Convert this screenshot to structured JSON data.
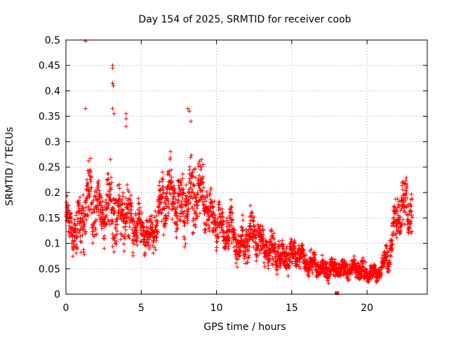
{
  "chart_data": {
    "type": "scatter",
    "title": "Day 154 of 2025, SRMTID for receiver coob",
    "xlabel": "GPS time / hours",
    "ylabel": "SRMTID / TECUs",
    "xlim": [
      0,
      24
    ],
    "ylim": [
      0,
      0.5
    ],
    "x_ticks": [
      0,
      5,
      10,
      15,
      20
    ],
    "x_tick_labels": [
      "0",
      "5",
      "10",
      "15",
      "20"
    ],
    "y_ticks": [
      0,
      0.05,
      0.1,
      0.15,
      0.2,
      0.25,
      0.3,
      0.35,
      0.4,
      0.45,
      0.5
    ],
    "y_tick_labels": [
      "0",
      "0.05",
      "0.1",
      "0.15",
      "0.2",
      "0.25",
      "0.3",
      "0.35",
      "0.4",
      "0.45",
      "0.5"
    ],
    "grid": true,
    "marker": "+",
    "color": "#ff0000",
    "series_envelope": {
      "x": [
        0,
        0.5,
        1,
        1.5,
        2,
        2.5,
        3,
        3.5,
        4,
        4.5,
        5,
        5.5,
        6,
        6.5,
        7,
        7.5,
        8,
        8.5,
        9,
        9.5,
        10,
        10.5,
        11,
        11.5,
        12,
        12.5,
        13,
        13.5,
        14,
        14.5,
        15,
        15.5,
        16,
        16.5,
        17,
        17.5,
        18,
        18.5,
        19,
        19.5,
        20,
        20.5,
        21,
        21.5,
        22,
        22.5,
        23
      ],
      "center": [
        0.15,
        0.12,
        0.14,
        0.18,
        0.17,
        0.16,
        0.17,
        0.15,
        0.16,
        0.14,
        0.13,
        0.11,
        0.14,
        0.19,
        0.2,
        0.17,
        0.18,
        0.2,
        0.2,
        0.15,
        0.14,
        0.12,
        0.13,
        0.09,
        0.11,
        0.12,
        0.1,
        0.09,
        0.08,
        0.07,
        0.08,
        0.08,
        0.06,
        0.06,
        0.05,
        0.05,
        0.05,
        0.05,
        0.05,
        0.05,
        0.04,
        0.04,
        0.05,
        0.09,
        0.16,
        0.18,
        0.16
      ],
      "spread": [
        0.04,
        0.04,
        0.07,
        0.08,
        0.06,
        0.06,
        0.08,
        0.06,
        0.07,
        0.05,
        0.04,
        0.04,
        0.05,
        0.07,
        0.06,
        0.06,
        0.07,
        0.08,
        0.07,
        0.05,
        0.05,
        0.04,
        0.05,
        0.04,
        0.05,
        0.05,
        0.04,
        0.04,
        0.035,
        0.03,
        0.03,
        0.03,
        0.025,
        0.025,
        0.02,
        0.025,
        0.02,
        0.025,
        0.02,
        0.025,
        0.02,
        0.02,
        0.02,
        0.04,
        0.05,
        0.06,
        0.05
      ]
    },
    "outliers": [
      {
        "x": 1.3,
        "y": 0.498
      },
      {
        "x": 1.3,
        "y": 0.365
      },
      {
        "x": 3.1,
        "y": 0.45
      },
      {
        "x": 3.1,
        "y": 0.445
      },
      {
        "x": 3.1,
        "y": 0.415
      },
      {
        "x": 3.15,
        "y": 0.41
      },
      {
        "x": 3.1,
        "y": 0.365
      },
      {
        "x": 3.2,
        "y": 0.355
      },
      {
        "x": 4.0,
        "y": 0.355
      },
      {
        "x": 4.0,
        "y": 0.345
      },
      {
        "x": 4.0,
        "y": 0.33
      },
      {
        "x": 8.1,
        "y": 0.365
      },
      {
        "x": 8.2,
        "y": 0.36
      },
      {
        "x": 8.3,
        "y": 0.34
      },
      {
        "x": 18.0,
        "y": 0.0
      }
    ]
  }
}
